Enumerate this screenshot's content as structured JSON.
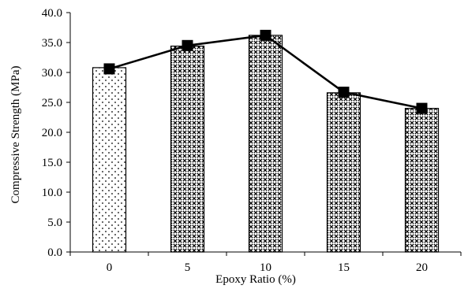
{
  "chart_data": {
    "type": "bar",
    "title": "",
    "xlabel": "Epoxy Ratio (%)",
    "ylabel": "Compressive Strength (MPa)",
    "categories": [
      "0",
      "5",
      "10",
      "15",
      "20"
    ],
    "values": [
      30.8,
      34.4,
      36.2,
      26.6,
      24.0
    ],
    "line_values": [
      30.6,
      34.5,
      36.2,
      26.7,
      24.0
    ],
    "ylim": [
      0,
      40
    ],
    "yticks": [
      "0.0",
      "5.0",
      "10.0",
      "15.0",
      "20.0",
      "25.0",
      "30.0",
      "35.0",
      "40.0"
    ],
    "grid": false,
    "legend": "none",
    "bar_patterns": [
      "dots",
      "crosshatch",
      "crosshatch",
      "crosshatch",
      "crosshatch"
    ],
    "line_color": "#000000",
    "marker": "square"
  }
}
